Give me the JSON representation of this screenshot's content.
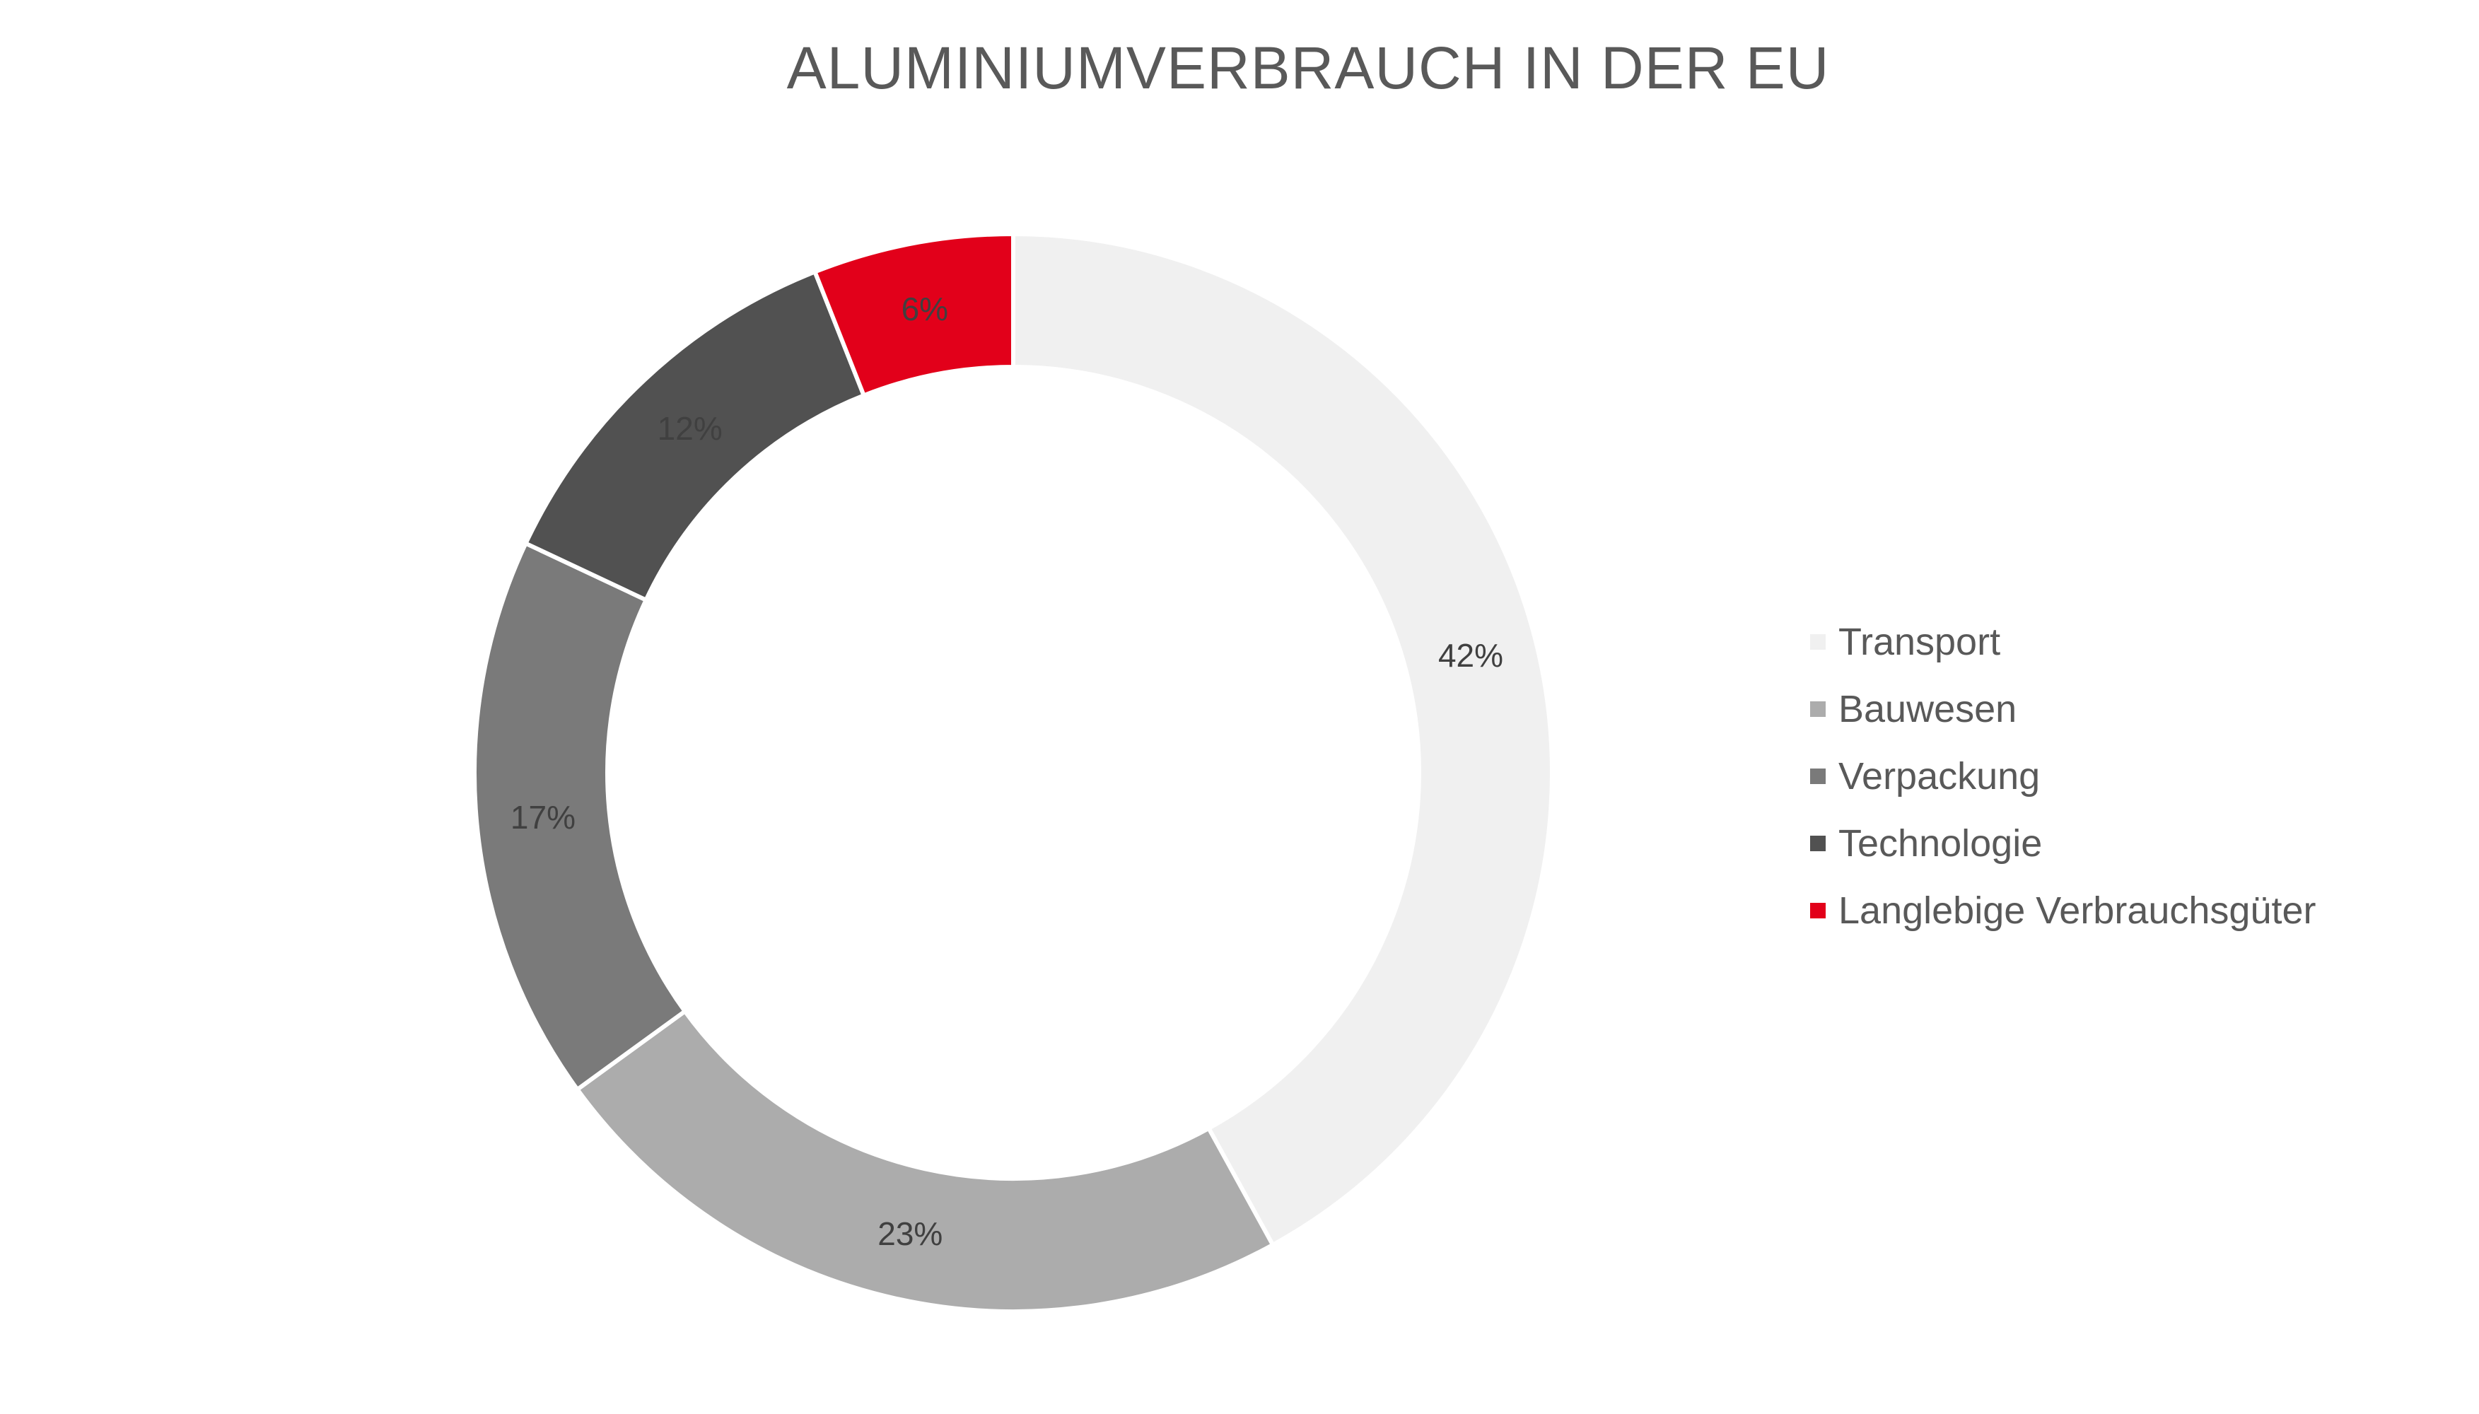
{
  "chart_data": {
    "type": "pie",
    "title": "ALUMINIUMVERBRAUCH IN DER EU",
    "categories": [
      "Transport",
      "Bauwesen",
      "Verpackung",
      "Technologie",
      "Langlebige Verbrauchsgüter"
    ],
    "values": [
      42,
      23,
      17,
      12,
      6
    ],
    "value_labels": [
      "42%",
      "23%",
      "17%",
      "12%",
      "6%"
    ],
    "colors": [
      "#f0f0f0",
      "#acacac",
      "#7a7a7a",
      "#515151",
      "#e2001a"
    ],
    "donut": true,
    "legend_position": "right"
  }
}
